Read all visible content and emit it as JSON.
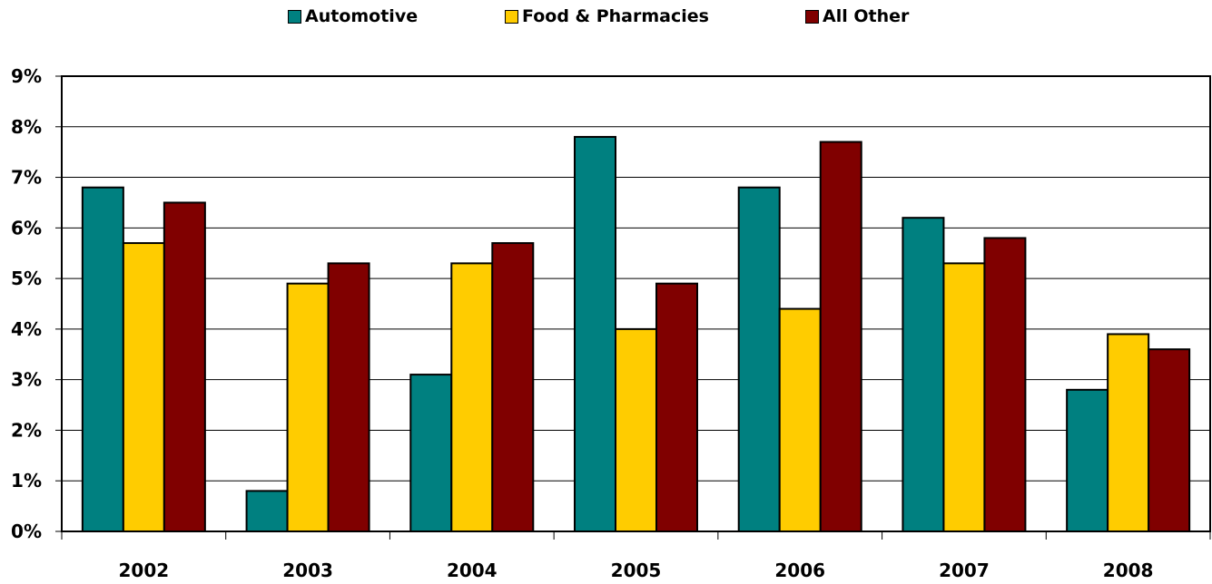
{
  "chart_data": {
    "type": "bar",
    "categories": [
      "2002",
      "2003",
      "2004",
      "2005",
      "2006",
      "2007",
      "2008"
    ],
    "series": [
      {
        "name": "Automotive",
        "color": "#008080",
        "values": [
          6.8,
          0.8,
          3.1,
          7.8,
          6.8,
          6.2,
          2.8
        ]
      },
      {
        "name": "Food & Pharmacies",
        "color": "#FFCC00",
        "values": [
          5.7,
          4.9,
          5.3,
          4.0,
          4.4,
          5.3,
          3.9
        ]
      },
      {
        "name": "All Other",
        "color": "#800000",
        "values": [
          6.5,
          5.3,
          5.7,
          4.9,
          7.7,
          5.8,
          3.6
        ]
      }
    ],
    "yticks": [
      "0%",
      "1%",
      "2%",
      "3%",
      "4%",
      "5%",
      "6%",
      "7%",
      "8%",
      "9%"
    ],
    "ylim": [
      0,
      9
    ],
    "grid": true,
    "legend": "top",
    "title": "",
    "xlabel": "",
    "ylabel": ""
  }
}
